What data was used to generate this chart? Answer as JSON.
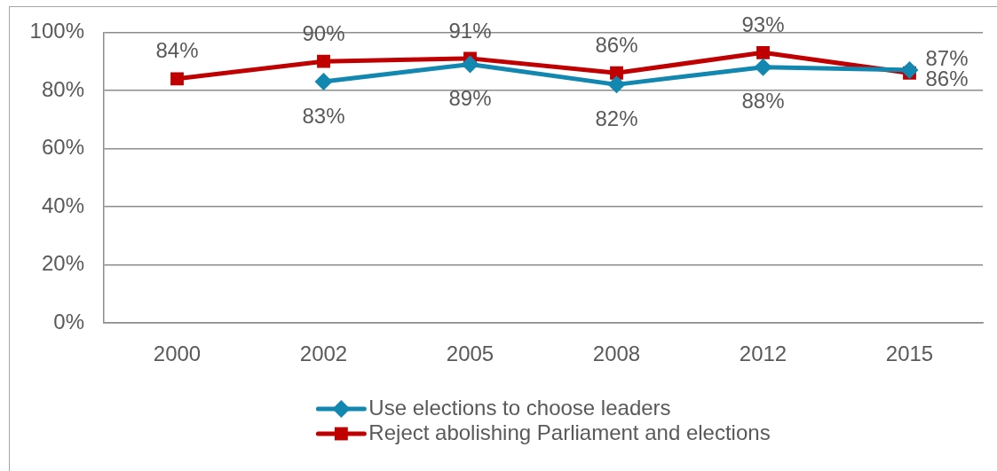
{
  "chart_data": {
    "type": "line",
    "categories": [
      "2000",
      "2002",
      "2005",
      "2008",
      "2012",
      "2015"
    ],
    "series": [
      {
        "name": "Use elections to choose leaders",
        "color": "#1287b0",
        "marker": "diamond",
        "values": [
          null,
          83,
          89,
          82,
          88,
          87
        ],
        "value_labels": [
          null,
          "83%",
          "89%",
          "82%",
          "88%",
          "87%"
        ]
      },
      {
        "name": "Reject abolishing Parliament and elections",
        "color": "#c00000",
        "marker": "square",
        "values": [
          84,
          90,
          91,
          86,
          93,
          86
        ],
        "value_labels": [
          "84%",
          "90%",
          "91%",
          "86%",
          "93%",
          "86%"
        ]
      }
    ],
    "ylim": [
      0,
      100
    ],
    "yticks": [
      {
        "value": 0,
        "label": "0%"
      },
      {
        "value": 20,
        "label": "20%"
      },
      {
        "value": 40,
        "label": "40%"
      },
      {
        "value": 60,
        "label": "60%"
      },
      {
        "value": 80,
        "label": "80%"
      },
      {
        "value": 100,
        "label": "100%"
      }
    ],
    "grid": "y",
    "legend": "bottom"
  }
}
